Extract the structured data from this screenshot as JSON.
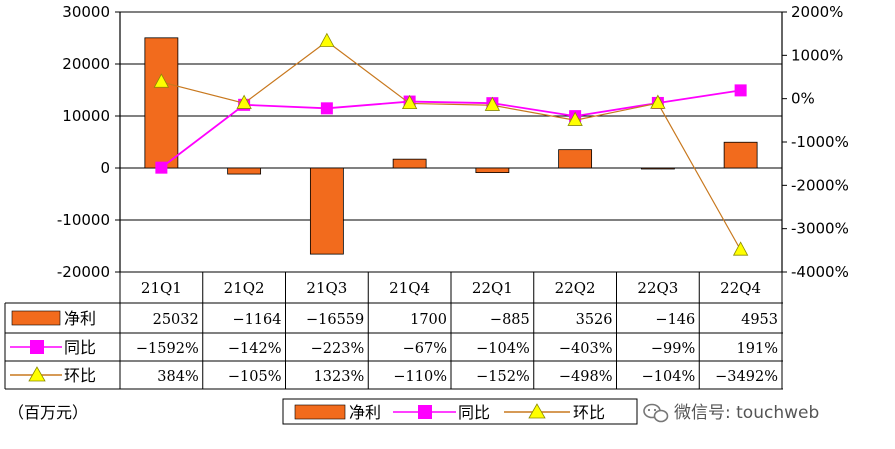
{
  "chart_data": {
    "type": "bar",
    "categories": [
      "21Q1",
      "21Q2",
      "21Q3",
      "21Q4",
      "22Q1",
      "22Q2",
      "22Q3",
      "22Q4"
    ],
    "series": [
      {
        "name": "净利",
        "type": "bar",
        "axis": "left",
        "color": "#f26b1d",
        "values": [
          25032,
          -1164,
          -16559,
          1700,
          -885,
          3526,
          -146,
          4953
        ],
        "labels": [
          "25032",
          "−1164",
          "−16559",
          "1700",
          "−885",
          "3526",
          "−146",
          "4953"
        ]
      },
      {
        "name": "同比",
        "type": "line",
        "axis": "right",
        "color": "#ff00ff",
        "marker": "square",
        "values": [
          -1592,
          -142,
          -223,
          -67,
          -104,
          -403,
          -99,
          191
        ],
        "labels": [
          "−1592%",
          "−142%",
          "−223%",
          "−67%",
          "−104%",
          "−403%",
          "−99%",
          "191%"
        ]
      },
      {
        "name": "环比",
        "type": "line",
        "axis": "right",
        "color": "#c8781e",
        "marker": "triangle",
        "marker_color": "#ffff00",
        "values": [
          384,
          -105,
          1323,
          -110,
          -152,
          -498,
          -104,
          -3492
        ],
        "labels": [
          "384%",
          "−105%",
          "1323%",
          "−110%",
          "−152%",
          "−498%",
          "−104%",
          "−3492%"
        ]
      }
    ],
    "y_left": {
      "ylim": [
        -20000,
        30000
      ],
      "ticks": [
        -20000,
        -10000,
        0,
        10000,
        20000,
        30000
      ],
      "tick_labels": [
        "-20000",
        "-10000",
        "0",
        "10000",
        "20000",
        "30000"
      ]
    },
    "y_right": {
      "ylim": [
        -4000,
        2000
      ],
      "ticks": [
        -4000,
        -3000,
        -2000,
        -1000,
        0,
        1000,
        2000
      ],
      "tick_labels": [
        "-4000%",
        "-3000%",
        "-2000%",
        "-1000%",
        "0%",
        "1000%",
        "2000%"
      ]
    },
    "grid": true,
    "legend": "bottom",
    "data_table": true
  },
  "unit_label": "（百万元）",
  "watermark": "微信号: touchweb"
}
